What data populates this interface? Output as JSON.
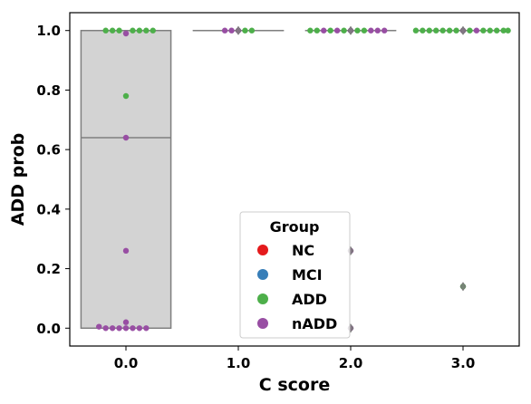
{
  "chart_data": {
    "type": "box+swarm",
    "xlabel": "C score",
    "ylabel": "ADD prob",
    "categories": [
      "0.0",
      "1.0",
      "2.0",
      "3.0"
    ],
    "yticks": [
      "0.0",
      "0.2",
      "0.4",
      "0.6",
      "0.8",
      "1.0"
    ],
    "ylim": [
      -0.06,
      1.06
    ],
    "grid": false,
    "legend": {
      "title": "Group",
      "placement": "lower-center",
      "entries": [
        {
          "name": "NC",
          "color": "#e41a1c"
        },
        {
          "name": "MCI",
          "color": "#377eb8"
        },
        {
          "name": "ADD",
          "color": "#4daf4a"
        },
        {
          "name": "nADD",
          "color": "#984ea3"
        }
      ]
    },
    "boxes": [
      {
        "category": "0.0",
        "q1": 0.0,
        "median": 0.64,
        "q3": 1.0,
        "whisker_low": 0.0,
        "whisker_high": 1.0
      },
      {
        "category": "1.0",
        "q1": 1.0,
        "median": 1.0,
        "q3": 1.0,
        "whisker_low": 1.0,
        "whisker_high": 1.0
      },
      {
        "category": "2.0",
        "q1": 1.0,
        "median": 1.0,
        "q3": 1.0,
        "whisker_low": 1.0,
        "whisker_high": 1.0
      },
      {
        "category": "3.0",
        "q1": 1.0,
        "median": 1.0,
        "q3": 1.0,
        "whisker_low": 1.0,
        "whisker_high": 1.0
      }
    ],
    "outliers": [
      {
        "category": "2.0",
        "y": 0.26
      },
      {
        "category": "2.0",
        "y": 0.0
      },
      {
        "category": "3.0",
        "y": 0.14
      },
      {
        "category": "1.0",
        "y": 1.0
      },
      {
        "category": "2.0",
        "y": 1.0
      },
      {
        "category": "3.0",
        "y": 1.0
      }
    ],
    "series": [
      {
        "name": "ADD",
        "color": "#4daf4a",
        "points": [
          {
            "category": "0.0",
            "y": 1.0,
            "offset": -0.18
          },
          {
            "category": "0.0",
            "y": 1.0,
            "offset": -0.12
          },
          {
            "category": "0.0",
            "y": 1.0,
            "offset": -0.06
          },
          {
            "category": "0.0",
            "y": 1.0,
            "offset": 0.06
          },
          {
            "category": "0.0",
            "y": 1.0,
            "offset": 0.12
          },
          {
            "category": "0.0",
            "y": 1.0,
            "offset": 0.18
          },
          {
            "category": "0.0",
            "y": 1.0,
            "offset": 0.24
          },
          {
            "category": "0.0",
            "y": 0.78,
            "offset": 0.0
          },
          {
            "category": "1.0",
            "y": 1.0,
            "offset": 0.06
          },
          {
            "category": "1.0",
            "y": 1.0,
            "offset": 0.12
          },
          {
            "category": "2.0",
            "y": 1.0,
            "offset": -0.36
          },
          {
            "category": "2.0",
            "y": 1.0,
            "offset": -0.3
          },
          {
            "category": "2.0",
            "y": 1.0,
            "offset": -0.18
          },
          {
            "category": "2.0",
            "y": 1.0,
            "offset": -0.06
          },
          {
            "category": "2.0",
            "y": 1.0,
            "offset": 0.06
          },
          {
            "category": "2.0",
            "y": 1.0,
            "offset": 0.12
          },
          {
            "category": "3.0",
            "y": 1.0,
            "offset": -0.42
          },
          {
            "category": "3.0",
            "y": 1.0,
            "offset": -0.36
          },
          {
            "category": "3.0",
            "y": 1.0,
            "offset": -0.3
          },
          {
            "category": "3.0",
            "y": 1.0,
            "offset": -0.24
          },
          {
            "category": "3.0",
            "y": 1.0,
            "offset": -0.18
          },
          {
            "category": "3.0",
            "y": 1.0,
            "offset": -0.12
          },
          {
            "category": "3.0",
            "y": 1.0,
            "offset": -0.06
          },
          {
            "category": "3.0",
            "y": 1.0,
            "offset": 0.0
          },
          {
            "category": "3.0",
            "y": 1.0,
            "offset": 0.06
          },
          {
            "category": "3.0",
            "y": 1.0,
            "offset": 0.18
          },
          {
            "category": "3.0",
            "y": 1.0,
            "offset": 0.24
          },
          {
            "category": "3.0",
            "y": 1.0,
            "offset": 0.3
          },
          {
            "category": "3.0",
            "y": 1.0,
            "offset": 0.36
          },
          {
            "category": "3.0",
            "y": 1.0,
            "offset": 0.4
          },
          {
            "category": "3.0",
            "y": 0.14,
            "offset": 0.0
          }
        ]
      },
      {
        "name": "nADD",
        "color": "#984ea3",
        "points": [
          {
            "category": "0.0",
            "y": 0.99,
            "offset": 0.0
          },
          {
            "category": "0.0",
            "y": 0.64,
            "offset": 0.0
          },
          {
            "category": "0.0",
            "y": 0.26,
            "offset": 0.0
          },
          {
            "category": "0.0",
            "y": 0.02,
            "offset": 0.0
          },
          {
            "category": "0.0",
            "y": 0.005,
            "offset": -0.24
          },
          {
            "category": "0.0",
            "y": 0.0,
            "offset": -0.18
          },
          {
            "category": "0.0",
            "y": 0.0,
            "offset": -0.12
          },
          {
            "category": "0.0",
            "y": 0.0,
            "offset": -0.06
          },
          {
            "category": "0.0",
            "y": 0.0,
            "offset": 0.0
          },
          {
            "category": "0.0",
            "y": 0.0,
            "offset": 0.06
          },
          {
            "category": "0.0",
            "y": 0.0,
            "offset": 0.12
          },
          {
            "category": "0.0",
            "y": 0.0,
            "offset": 0.18
          },
          {
            "category": "1.0",
            "y": 1.0,
            "offset": -0.12
          },
          {
            "category": "1.0",
            "y": 1.0,
            "offset": -0.06
          },
          {
            "category": "1.0",
            "y": 1.0,
            "offset": 0.0
          },
          {
            "category": "2.0",
            "y": 1.0,
            "offset": -0.24
          },
          {
            "category": "2.0",
            "y": 1.0,
            "offset": -0.12
          },
          {
            "category": "2.0",
            "y": 1.0,
            "offset": 0.0
          },
          {
            "category": "2.0",
            "y": 1.0,
            "offset": 0.18
          },
          {
            "category": "2.0",
            "y": 1.0,
            "offset": 0.24
          },
          {
            "category": "2.0",
            "y": 1.0,
            "offset": 0.3
          },
          {
            "category": "2.0",
            "y": 0.26,
            "offset": 0.0
          },
          {
            "category": "2.0",
            "y": 0.0,
            "offset": 0.0
          },
          {
            "category": "3.0",
            "y": 1.0,
            "offset": 0.12
          },
          {
            "category": "3.0",
            "y": 1.0,
            "offset": 0.0
          }
        ]
      }
    ]
  }
}
